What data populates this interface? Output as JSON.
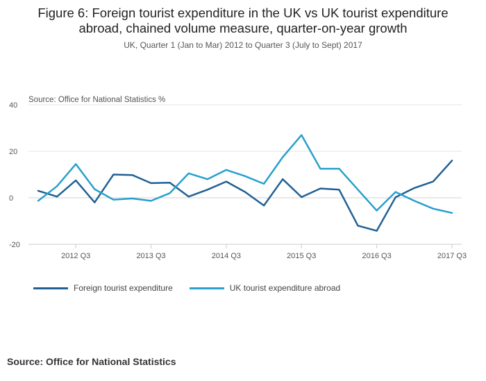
{
  "title_line1": "Figure 6: Foreign tourist expenditure in the UK vs UK tourist expenditure",
  "title_line2": "abroad, chained volume measure, quarter-on-year growth",
  "subtitle": "UK, Quarter 1 (Jan to Mar) 2012 to Quarter 3 (July to Sept) 2017",
  "source_note": "Source: Office for National Statistics %",
  "footer": "Source: Office for National Statistics",
  "chart_data": {
    "type": "line",
    "x": [
      "2012 Q1",
      "2012 Q2",
      "2012 Q3",
      "2012 Q4",
      "2013 Q1",
      "2013 Q2",
      "2013 Q3",
      "2013 Q4",
      "2014 Q1",
      "2014 Q2",
      "2014 Q3",
      "2014 Q4",
      "2015 Q1",
      "2015 Q2",
      "2015 Q3",
      "2015 Q4",
      "2016 Q1",
      "2016 Q2",
      "2016 Q3",
      "2016 Q4",
      "2017 Q1",
      "2017 Q2",
      "2017 Q3"
    ],
    "x_tick_labels": [
      "2012 Q3",
      "2013 Q3",
      "2014 Q3",
      "2015 Q3",
      "2016 Q3",
      "2017 Q3"
    ],
    "y_ticks": [
      40,
      20,
      0,
      -20
    ],
    "ylim": [
      -20,
      40
    ],
    "grid": true,
    "legend_position": "bottom-left",
    "series": [
      {
        "name": "Foreign tourist expenditure",
        "color": "#206095",
        "values": [
          3,
          0.5,
          7.5,
          -2,
          10,
          9.8,
          6.3,
          6.5,
          0.5,
          3.5,
          7,
          2.5,
          -3.3,
          8,
          0.3,
          4,
          3.5,
          -12,
          -14.2,
          0.2,
          4.2,
          7,
          16
        ]
      },
      {
        "name": "UK tourist expenditure abroad",
        "color": "#27a0cc",
        "values": [
          -1.3,
          5,
          14.5,
          3.7,
          -0.8,
          -0.3,
          -1.3,
          2,
          10.5,
          8,
          12,
          9.3,
          6,
          17.5,
          27,
          12.5,
          12.5,
          3.5,
          -5.5,
          2.5,
          -1.3,
          -4.7,
          -6.5
        ]
      }
    ]
  }
}
